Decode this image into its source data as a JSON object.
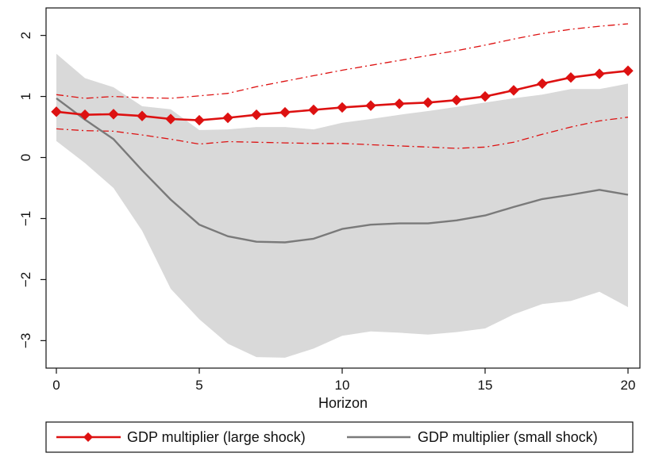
{
  "chart_data": {
    "type": "line",
    "title": "",
    "xlabel": "Horizon",
    "ylabel": "",
    "xlim": [
      0,
      20
    ],
    "ylim": [
      -3.45,
      2.45
    ],
    "xticks": [
      0,
      5,
      10,
      15,
      20
    ],
    "yticks": [
      -3,
      -2,
      -1,
      0,
      1,
      2
    ],
    "xtick_labels": [
      "0",
      "5",
      "10",
      "15",
      "20"
    ],
    "ytick_labels": [
      "−3",
      "−2",
      "−1",
      "0",
      "1",
      "2"
    ],
    "grid": false,
    "x": [
      0,
      1,
      2,
      3,
      4,
      5,
      6,
      7,
      8,
      9,
      10,
      11,
      12,
      13,
      14,
      15,
      16,
      17,
      18,
      19,
      20
    ],
    "series": [
      {
        "name": "GDP multiplier (large shock)",
        "color": "#dd1111",
        "marker": "diamond",
        "values": [
          0.75,
          0.7,
          0.71,
          0.68,
          0.63,
          0.61,
          0.65,
          0.7,
          0.74,
          0.78,
          0.82,
          0.85,
          0.88,
          0.9,
          0.94,
          1.0,
          1.1,
          1.21,
          1.31,
          1.37,
          1.42
        ],
        "ci_lower": [
          0.47,
          0.44,
          0.43,
          0.37,
          0.3,
          0.22,
          0.26,
          0.25,
          0.24,
          0.23,
          0.23,
          0.21,
          0.19,
          0.17,
          0.15,
          0.17,
          0.25,
          0.38,
          0.5,
          0.6,
          0.66
        ],
        "ci_upper": [
          1.03,
          0.97,
          1.0,
          0.98,
          0.97,
          1.01,
          1.05,
          1.16,
          1.25,
          1.34,
          1.43,
          1.51,
          1.59,
          1.67,
          1.75,
          1.84,
          1.94,
          2.03,
          2.1,
          2.15,
          2.19
        ]
      },
      {
        "name": "GDP multiplier (small shock)",
        "color": "#7a7a7a",
        "band_color": "#d9d9d9",
        "values": [
          0.97,
          0.62,
          0.3,
          -0.21,
          -0.69,
          -1.1,
          -1.29,
          -1.38,
          -1.39,
          -1.33,
          -1.17,
          -1.1,
          -1.08,
          -1.08,
          -1.03,
          -0.95,
          -0.81,
          -0.68,
          -0.61,
          -0.53,
          -0.61
        ],
        "ci_lower": [
          0.27,
          -0.09,
          -0.5,
          -1.2,
          -2.15,
          -2.65,
          -3.05,
          -3.27,
          -3.28,
          -3.13,
          -2.92,
          -2.85,
          -2.87,
          -2.9,
          -2.86,
          -2.8,
          -2.57,
          -2.4,
          -2.35,
          -2.2,
          -2.45
        ],
        "ci_upper": [
          1.7,
          1.3,
          1.15,
          0.84,
          0.79,
          0.45,
          0.46,
          0.5,
          0.5,
          0.46,
          0.57,
          0.63,
          0.7,
          0.76,
          0.83,
          0.9,
          0.97,
          1.03,
          1.12,
          1.12,
          1.21
        ]
      }
    ],
    "legend": {
      "position": "bottom",
      "entries": [
        "GDP multiplier (large shock)",
        "GDP multiplier (small shock)"
      ]
    }
  }
}
